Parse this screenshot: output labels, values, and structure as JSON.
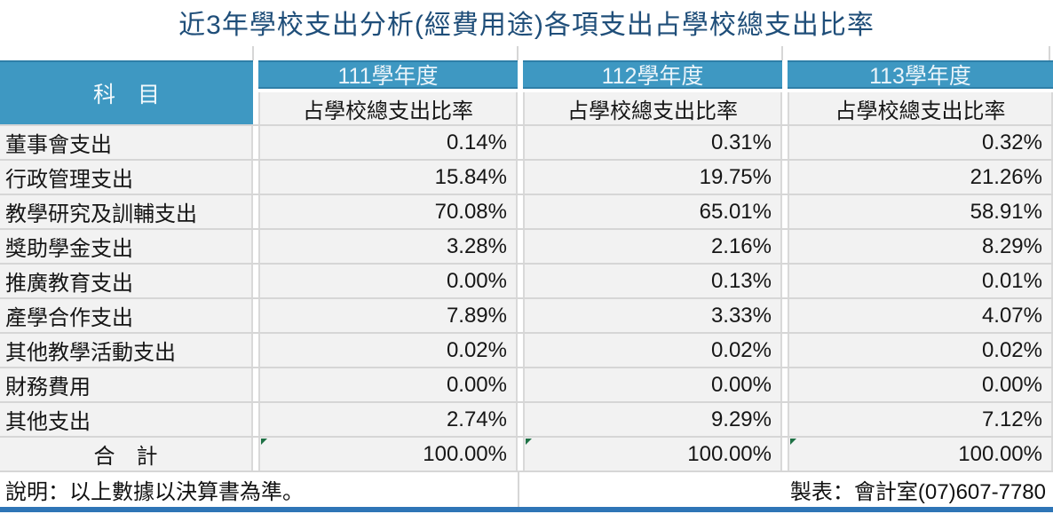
{
  "title": "近3年學校支出分析(經費用途)各項支出占學校總支出比率",
  "colors": {
    "title_text": "#1F4E79",
    "header_fill": "#3E98C2",
    "header_border": "#2E7FA8",
    "cell_fill": "#F2F2F2",
    "grid_line": "#D6D6D6",
    "bottom_bar": "#2E75B6",
    "flag_indicator": "#1E7145"
  },
  "table": {
    "subject_header": "科　目",
    "year_headers": [
      "111學年度",
      "112學年度",
      "113學年度"
    ],
    "sub_header": "占學校總支出比率",
    "rows": [
      {
        "label": "董事會支出",
        "values": [
          "0.14%",
          "0.31%",
          "0.32%"
        ]
      },
      {
        "label": "行政管理支出",
        "values": [
          "15.84%",
          "19.75%",
          "21.26%"
        ]
      },
      {
        "label": "教學研究及訓輔支出",
        "values": [
          "70.08%",
          "65.01%",
          "58.91%"
        ]
      },
      {
        "label": "獎助學金支出",
        "values": [
          "3.28%",
          "2.16%",
          "8.29%"
        ]
      },
      {
        "label": "推廣教育支出",
        "values": [
          "0.00%",
          "0.13%",
          "0.01%"
        ]
      },
      {
        "label": "產學合作支出",
        "values": [
          "7.89%",
          "3.33%",
          "4.07%"
        ]
      },
      {
        "label": "其他教學活動支出",
        "values": [
          "0.02%",
          "0.02%",
          "0.02%"
        ]
      },
      {
        "label": "財務費用",
        "values": [
          "0.00%",
          "0.00%",
          "0.00%"
        ]
      },
      {
        "label": "其他支出",
        "values": [
          "2.74%",
          "9.29%",
          "7.12%"
        ]
      }
    ],
    "total_row": {
      "label": "合　計",
      "values": [
        "100.00%",
        "100.00%",
        "100.00%"
      ]
    }
  },
  "footer": {
    "note": "說明：以上數據以決算書為準。",
    "maker": "製表：會計室(07)607-7780"
  }
}
